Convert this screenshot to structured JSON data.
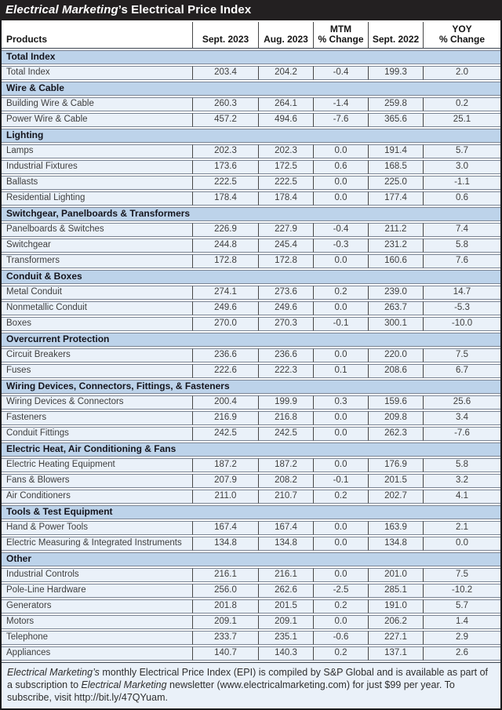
{
  "title": {
    "italic": "Electrical Marketing",
    "rest": "’s Electrical Price Index"
  },
  "colors": {
    "title_bg": "#232021",
    "section_bg": "#bdd3ea",
    "row_bg": "#eaf1f9",
    "border_row": "#7b8595",
    "border_outer": "#1b1b1d"
  },
  "chart_data": {
    "type": "table",
    "title": "Electrical Marketing's Electrical Price Index",
    "columns": [
      {
        "label": "Products",
        "lines": [
          "Products"
        ]
      },
      {
        "label": "Sept. 2023",
        "lines": [
          "Sept. 2023"
        ]
      },
      {
        "label": "Aug. 2023",
        "lines": [
          "Aug. 2023"
        ]
      },
      {
        "label": "MTM % Change",
        "lines": [
          "MTM",
          "% Change"
        ]
      },
      {
        "label": "Sept. 2022",
        "lines": [
          "Sept. 2022"
        ]
      },
      {
        "label": "YOY % Change",
        "lines": [
          "YOY",
          "% Change"
        ]
      }
    ],
    "sections": [
      {
        "name": "Total Index",
        "rows": [
          {
            "product": "Total Index",
            "values": [
              "203.4",
              "204.2",
              "-0.4",
              "199.3",
              "2.0"
            ]
          }
        ]
      },
      {
        "name": "Wire & Cable",
        "rows": [
          {
            "product": "Building Wire &  Cable",
            "values": [
              "260.3",
              "264.1",
              "-1.4",
              "259.8",
              "0.2"
            ]
          },
          {
            "product": "Power Wire &  Cable",
            "values": [
              "457.2",
              "494.6",
              "-7.6",
              "365.6",
              "25.1"
            ]
          }
        ]
      },
      {
        "name": "Lighting",
        "rows": [
          {
            "product": "Lamps",
            "values": [
              "202.3",
              "202.3",
              "0.0",
              "191.4",
              "5.7"
            ]
          },
          {
            "product": "Industrial Fixtures",
            "values": [
              "173.6",
              "172.5",
              "0.6",
              "168.5",
              "3.0"
            ]
          },
          {
            "product": "Ballasts",
            "values": [
              "222.5",
              "222.5",
              "0.0",
              "225.0",
              "-1.1"
            ]
          },
          {
            "product": "Residential Lighting",
            "values": [
              "178.4",
              "178.4",
              "0.0",
              "177.4",
              "0.6"
            ]
          }
        ]
      },
      {
        "name": "Switchgear, Panelboards & Transformers",
        "rows": [
          {
            "product": "Panelboards &  Switches",
            "values": [
              "226.9",
              "227.9",
              "-0.4",
              "211.2",
              "7.4"
            ]
          },
          {
            "product": "Switchgear",
            "values": [
              "244.8",
              "245.4",
              "-0.3",
              "231.2",
              "5.8"
            ]
          },
          {
            "product": "Transformers",
            "values": [
              "172.8",
              "172.8",
              "0.0",
              "160.6",
              "7.6"
            ]
          }
        ]
      },
      {
        "name": "Conduit & Boxes",
        "rows": [
          {
            "product": "Metal Conduit",
            "values": [
              "274.1",
              "273.6",
              "0.2",
              "239.0",
              "14.7"
            ]
          },
          {
            "product": "Nonmetallic Conduit",
            "values": [
              "249.6",
              "249.6",
              "0.0",
              "263.7",
              "-5.3"
            ]
          },
          {
            "product": "Boxes",
            "values": [
              "270.0",
              "270.3",
              "-0.1",
              "300.1",
              "-10.0"
            ]
          }
        ]
      },
      {
        "name": "Overcurrent Protection",
        "rows": [
          {
            "product": "Circuit Breakers",
            "values": [
              "236.6",
              "236.6",
              "0.0",
              "220.0",
              "7.5"
            ]
          },
          {
            "product": "Fuses",
            "values": [
              "222.6",
              "222.3",
              "0.1",
              "208.6",
              "6.7"
            ]
          }
        ]
      },
      {
        "name": "Wiring Devices, Connectors, Fittings, & Fasteners",
        "rows": [
          {
            "product": "Wiring Devices & Connectors",
            "values": [
              "200.4",
              "199.9",
              "0.3",
              "159.6",
              "25.6"
            ]
          },
          {
            "product": "Fasteners",
            "values": [
              "216.9",
              "216.8",
              "0.0",
              "209.8",
              "3.4"
            ]
          },
          {
            "product": "Conduit Fittings",
            "values": [
              "242.5",
              "242.5",
              "0.0",
              "262.3",
              "-7.6"
            ]
          }
        ]
      },
      {
        "name": "Electric Heat, Air Conditioning & Fans",
        "rows": [
          {
            "product": "Electric Heating Equipment",
            "values": [
              "187.2",
              "187.2",
              "0.0",
              "176.9",
              "5.8"
            ]
          },
          {
            "product": "Fans &  Blowers",
            "values": [
              "207.9",
              "208.2",
              "-0.1",
              "201.5",
              "3.2"
            ]
          },
          {
            "product": "Air Conditioners",
            "values": [
              "211.0",
              "210.7",
              "0.2",
              "202.7",
              "4.1"
            ]
          }
        ]
      },
      {
        "name": "Tools & Test Equipment",
        "rows": [
          {
            "product": "Hand &  Power Tools",
            "values": [
              "167.4",
              "167.4",
              "0.0",
              "163.9",
              "2.1"
            ]
          },
          {
            "product": "Electric Measuring &  Integrated Instruments",
            "values": [
              "134.8",
              "134.8",
              "0.0",
              "134.8",
              "0.0"
            ]
          }
        ]
      },
      {
        "name": "Other",
        "rows": [
          {
            "product": "Industrial Controls",
            "values": [
              "216.1",
              "216.1",
              "0.0",
              "201.0",
              "7.5"
            ]
          },
          {
            "product": "Pole-Line Hardware",
            "values": [
              "256.0",
              "262.6",
              "-2.5",
              "285.1",
              "-10.2"
            ]
          },
          {
            "product": "Generators",
            "values": [
              "201.8",
              "201.5",
              "0.2",
              "191.0",
              "5.7"
            ]
          },
          {
            "product": "Motors",
            "values": [
              "209.1",
              "209.1",
              "0.0",
              "206.2",
              "1.4"
            ]
          },
          {
            "product": "Telephone",
            "values": [
              "233.7",
              "235.1",
              "-0.6",
              "227.1",
              "2.9"
            ]
          },
          {
            "product": "Appliances",
            "values": [
              "140.7",
              "140.3",
              "0.2",
              "137.1",
              "2.6"
            ]
          }
        ]
      }
    ]
  },
  "footer": {
    "italic1": "Electrical Marketing’s",
    "text1": " monthly Electrical Price Index (EPI) is compiled by S&P Global and is available as part of a subscription to ",
    "italic2": "Electrical Marketing",
    "text2": " newsletter (www.electricalmarketing.com) for just $99 per year. To subscribe, visit http://bit.ly/47QYuam."
  }
}
